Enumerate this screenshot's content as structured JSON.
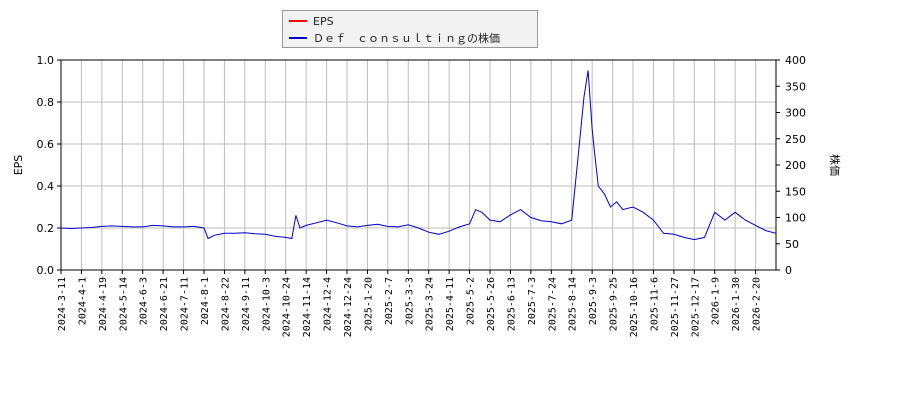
{
  "colors": {
    "eps": "#ff0000",
    "price": "#0000cc",
    "grid": "#bdbdbd",
    "axis": "#000000"
  },
  "legend": {
    "eps_label": "EPS",
    "price_label": "Ｄｅｆ　ｃｏｎｓｕｌｔｉｎｇの株価"
  },
  "chart_data": {
    "type": "line",
    "y_left": {
      "label": "EPS",
      "range": [
        0,
        1.0
      ],
      "ticks": [
        "0.0",
        "0.2",
        "0.4",
        "0.6",
        "0.8",
        "1.0"
      ]
    },
    "y_right": {
      "label": "株価",
      "range": [
        0,
        400
      ],
      "ticks": [
        "0",
        "50",
        "100",
        "150",
        "200",
        "250",
        "300",
        "350",
        "400"
      ]
    },
    "x": {
      "ticks": [
        "2024-3-11",
        "2024-4-1",
        "2024-4-19",
        "2024-5-14",
        "2024-6-3",
        "2024-6-21",
        "2024-7-11",
        "2024-8-1",
        "2024-8-22",
        "2024-9-11",
        "2024-10-3",
        "2024-10-24",
        "2024-11-14",
        "2024-12-4",
        "2024-12-24",
        "2025-1-20",
        "2025-2-7",
        "2025-3-3",
        "2025-3-24",
        "2025-4-11",
        "2025-5-2",
        "2025-5-26",
        "2025-6-13",
        "2025-7-3",
        "2025-7-24",
        "2025-8-14",
        "2025-9-3",
        "2025-9-25",
        "2025-10-16",
        "2025-11-6",
        "2025-11-27",
        "2025-12-17",
        "2026-1-9",
        "2026-1-30",
        "2026-2-20"
      ]
    },
    "grid": true,
    "series": [
      {
        "name": "EPS",
        "axis": "left",
        "values": []
      },
      {
        "name": "Ｄｅｆ　ｃｏｎｓｕｌｔｉｎｇの株価",
        "axis": "right",
        "x_index": [
          0,
          0.5,
          1,
          1.5,
          2,
          2.5,
          3,
          3.5,
          4,
          4.5,
          5,
          5.5,
          6,
          6.5,
          7,
          7.2,
          7.5,
          8,
          8.5,
          9,
          9.5,
          10,
          10.5,
          11,
          11.3,
          11.5,
          11.7,
          12,
          12.5,
          13,
          13.5,
          14,
          14.5,
          15,
          15.5,
          16,
          16.5,
          17,
          17.5,
          18,
          18.5,
          19,
          19.5,
          20,
          20.3,
          20.6,
          21,
          21.5,
          22,
          22.5,
          23,
          23.5,
          24,
          24.5,
          25,
          25.3,
          25.6,
          25.8,
          26,
          26.1,
          26.3,
          26.6,
          26.9,
          27.2,
          27.5,
          28,
          28.5,
          29,
          29.5,
          30,
          30.5,
          31,
          31.5,
          32,
          32.5,
          33,
          33.5,
          34,
          34.5,
          35
        ],
        "values": [
          80,
          79,
          80,
          81,
          83,
          84,
          83,
          82,
          82,
          85,
          84,
          82,
          82,
          83,
          80,
          60,
          66,
          70,
          70,
          71,
          69,
          68,
          64,
          62,
          60,
          104,
          80,
          85,
          90,
          95,
          90,
          84,
          82,
          85,
          87,
          83,
          82,
          86,
          80,
          72,
          68,
          74,
          82,
          88,
          115,
          110,
          95,
          92,
          105,
          115,
          100,
          94,
          92,
          88,
          95,
          210,
          330,
          380,
          270,
          230,
          160,
          145,
          120,
          130,
          115,
          120,
          110,
          95,
          70,
          68,
          62,
          58,
          62,
          110,
          95,
          110,
          95,
          85,
          75,
          70
        ]
      }
    ]
  }
}
